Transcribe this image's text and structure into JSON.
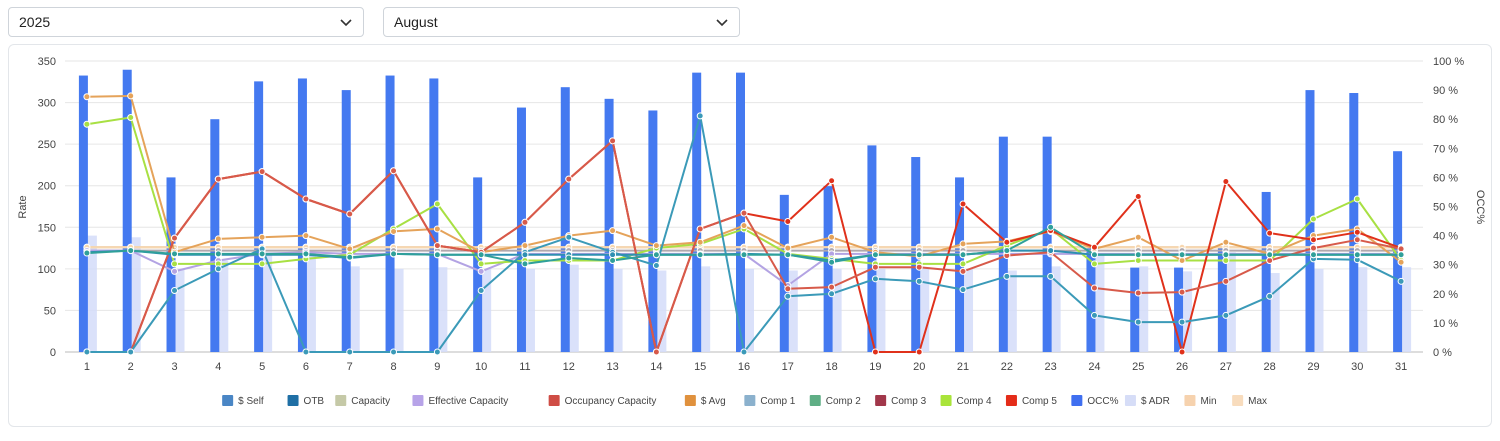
{
  "filters": {
    "year": "2025",
    "month": "August"
  },
  "chart_data": {
    "type": "bar+line",
    "title": "",
    "ylabel": "Rate",
    "y2label": "OCC%",
    "ylim": [
      0,
      350
    ],
    "y2lim": [
      0,
      100
    ],
    "yticks": [
      0,
      50,
      100,
      150,
      200,
      250,
      300,
      350
    ],
    "y2ticks": [
      "0 %",
      "10 %",
      "20 %",
      "30 %",
      "40 %",
      "50 %",
      "60 %",
      "70 %",
      "80 %",
      "90 %",
      "100 %"
    ],
    "categories": [
      "1",
      "2",
      "3",
      "4",
      "5",
      "6",
      "7",
      "8",
      "9",
      "10",
      "11",
      "12",
      "13",
      "14",
      "15",
      "16",
      "17",
      "18",
      "19",
      "20",
      "21",
      "22",
      "23",
      "24",
      "25",
      "26",
      "27",
      "28",
      "29",
      "30",
      "31"
    ],
    "legend_position": "bottom",
    "bar_series": [
      {
        "name": "OCC%",
        "axis": "right",
        "color": "#4479f0",
        "values": [
          95,
          97,
          60,
          80,
          93,
          94,
          90,
          95,
          94,
          60,
          84,
          91,
          87,
          83,
          96,
          96,
          54,
          57,
          71,
          67,
          60,
          74,
          74,
          36,
          29,
          29,
          36,
          55,
          90,
          89,
          69
        ]
      },
      {
        "name": "$ ADR",
        "axis": "left",
        "color": "#d3dcf9",
        "values": [
          140,
          138,
          100,
          110,
          118,
          120,
          103,
          100,
          102,
          100,
          100,
          105,
          100,
          98,
          103,
          100,
          98,
          100,
          100,
          100,
          100,
          98,
          103,
          118,
          103,
          97,
          120,
          95,
          100,
          102,
          102
        ]
      }
    ],
    "line_series": [
      {
        "name": "Capacity",
        "color": "#c8ccb1",
        "values": [
          126,
          126,
          126,
          126,
          126,
          126,
          126,
          126,
          126,
          126,
          126,
          126,
          126,
          126,
          126,
          126,
          126,
          126,
          126,
          126,
          126,
          126,
          126,
          126,
          126,
          126,
          126,
          126,
          126,
          126,
          126
        ]
      },
      {
        "name": "Min",
        "color": "#f3c9a3",
        "values": [
          126,
          126,
          126,
          126,
          126,
          126,
          126,
          126,
          126,
          126,
          126,
          126,
          126,
          126,
          126,
          126,
          126,
          126,
          126,
          126,
          126,
          126,
          126,
          126,
          126,
          126,
          126,
          126,
          126,
          126,
          126
        ]
      },
      {
        "name": "Max",
        "color": "#f7d7b0",
        "values": [
          126,
          126,
          126,
          126,
          126,
          126,
          126,
          126,
          126,
          126,
          126,
          126,
          126,
          126,
          126,
          126,
          126,
          126,
          126,
          126,
          126,
          126,
          126,
          126,
          126,
          126,
          126,
          126,
          126,
          126,
          126
        ]
      },
      {
        "name": "Comp 3",
        "color": "#b0a8ad",
        "values": [
          122,
          122,
          122,
          122,
          122,
          122,
          122,
          122,
          122,
          122,
          122,
          122,
          122,
          122,
          122,
          122,
          122,
          122,
          122,
          122,
          122,
          122,
          122,
          122,
          122,
          122,
          122,
          122,
          122,
          122,
          122
        ]
      },
      {
        "name": "Effective Capacity",
        "color": "#b3a3e3",
        "values": [
          122,
          122,
          97,
          110,
          118,
          120,
          118,
          118,
          118,
          97,
          118,
          118,
          118,
          118,
          118,
          118,
          80,
          118,
          118,
          118,
          118,
          118,
          118,
          118,
          118,
          118,
          118,
          118,
          118,
          118,
          118
        ]
      },
      {
        "name": "Comp 4",
        "color": "#a8e043",
        "values": [
          274,
          282,
          106,
          106,
          106,
          112,
          117,
          148,
          178,
          106,
          110,
          110,
          110,
          125,
          130,
          148,
          118,
          112,
          106,
          106,
          106,
          128,
          148,
          106,
          110,
          110,
          110,
          110,
          160,
          184,
          110
        ]
      },
      {
        "name": "$ Avg",
        "color": "#e5a35a",
        "values": [
          307,
          308,
          120,
          136,
          138,
          140,
          124,
          145,
          148,
          120,
          128,
          140,
          146,
          128,
          132,
          152,
          125,
          138,
          120,
          115,
          130,
          133,
          145,
          124,
          138,
          110,
          132,
          118,
          140,
          148,
          108
        ]
      },
      {
        "name": "Comp 5",
        "color": "#e0311b",
        "values": [
          0,
          0,
          137,
          208,
          217,
          184,
          166,
          218,
          128,
          120,
          156,
          208,
          254,
          0,
          148,
          167,
          157,
          206,
          0,
          0,
          178,
          132,
          146,
          126,
          187,
          0,
          205,
          143,
          135,
          144,
          125
        ]
      },
      {
        "name": "Occupancy Capacity",
        "color": "#d75a4a",
        "values": [
          0,
          0,
          137,
          208,
          217,
          184,
          166,
          218,
          128,
          120,
          156,
          208,
          254,
          0,
          148,
          167,
          76,
          78,
          102,
          102,
          97,
          116,
          120,
          77,
          71,
          72,
          85,
          110,
          125,
          135,
          124
        ]
      },
      {
        "name": "Comp 1",
        "color": "#3b9ab8",
        "values": [
          0,
          0,
          74,
          100,
          124,
          0,
          0,
          0,
          0,
          74,
          120,
          138,
          120,
          104,
          284,
          0,
          67,
          70,
          88,
          85,
          75,
          91,
          91,
          44,
          36,
          36,
          44,
          67,
          112,
          111,
          85
        ]
      },
      {
        "name": "OTB",
        "color": "#2e8fb2",
        "values": [
          120,
          122,
          117,
          117,
          117,
          117,
          113,
          118,
          117,
          117,
          117,
          117,
          117,
          117,
          117,
          118,
          117,
          110,
          117,
          117,
          117,
          122,
          122,
          117,
          117,
          117,
          117,
          117,
          117,
          117,
          117
        ]
      },
      {
        "name": "Comp 2",
        "color": "#2fa09a",
        "values": [
          119,
          122,
          118,
          118,
          118,
          118,
          114,
          118,
          117,
          117,
          106,
          113,
          110,
          117,
          117,
          117,
          117,
          108,
          117,
          117,
          117,
          122,
          150,
          117,
          117,
          117,
          117,
          117,
          117,
          117,
          117
        ]
      }
    ],
    "legend": [
      {
        "name": "$ Self",
        "color": "#4a86c5"
      },
      {
        "name": "OTB",
        "color": "#1f6fa5"
      },
      {
        "name": "Capacity",
        "color": "#c5c9a7"
      },
      {
        "name": "Effective Capacity",
        "color": "#b7a3e8"
      },
      {
        "name": "Occupancy Capacity",
        "color": "#cf4d45"
      },
      {
        "name": "$ Avg",
        "color": "#e0913d"
      },
      {
        "name": "Comp 1",
        "color": "#8bb1cd"
      },
      {
        "name": "Comp 2",
        "color": "#5fae85"
      },
      {
        "name": "Comp 3",
        "color": "#a1374a"
      },
      {
        "name": "Comp 4",
        "color": "#a9e43a"
      },
      {
        "name": "Comp 5",
        "color": "#e42c19"
      },
      {
        "name": "OCC%",
        "color": "#3f6ff0"
      },
      {
        "name": "$ ADR",
        "color": "#d6ddf7"
      },
      {
        "name": "Min",
        "color": "#f6d2ae"
      },
      {
        "name": "Max",
        "color": "#f8dcbd"
      }
    ]
  }
}
